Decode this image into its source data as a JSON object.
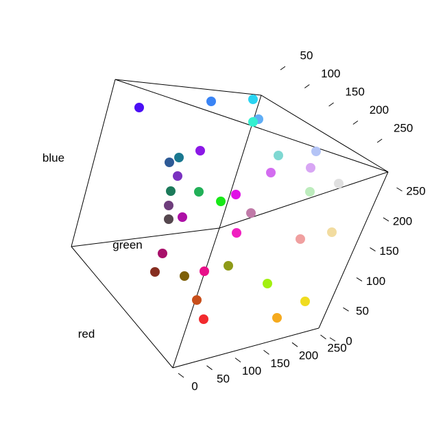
{
  "chart_data": {
    "type": "scatter",
    "title": "",
    "xlabel": "red",
    "ylabel": "green",
    "zlabel": "blue",
    "grid": false,
    "axes": {
      "red": {
        "label": "red",
        "range": [
          0,
          255
        ],
        "ticks": [
          0,
          50,
          100,
          150,
          200,
          250
        ]
      },
      "green": {
        "label": "green",
        "range": [
          0,
          255
        ],
        "ticks": [
          50,
          100,
          150,
          200,
          250
        ]
      },
      "blue": {
        "label": "blue",
        "range": [
          0,
          255
        ],
        "ticks": [
          0,
          50,
          100,
          150,
          200,
          250
        ]
      }
    },
    "points": [
      {
        "color": "#4b0ff5"
      },
      {
        "color": "#3a84f5"
      },
      {
        "color": "#2ad4f2"
      },
      {
        "color": "#60aef6"
      },
      {
        "color": "#33f0d0"
      },
      {
        "color": "#7fd8d2"
      },
      {
        "color": "#b4c4f6"
      },
      {
        "color": "#8b18e6"
      },
      {
        "color": "#1a7890"
      },
      {
        "color": "#2e5a96"
      },
      {
        "color": "#d36cf0"
      },
      {
        "color": "#d8a6f4"
      },
      {
        "color": "#e0e0e0"
      },
      {
        "color": "#7a32c0"
      },
      {
        "color": "#1c7a5a"
      },
      {
        "color": "#22b058"
      },
      {
        "color": "#bdecbd"
      },
      {
        "color": "#18e818"
      },
      {
        "color": "#e010e6"
      },
      {
        "color": "#6e3d7c"
      },
      {
        "color": "#c07aa8"
      },
      {
        "color": "#55474e"
      },
      {
        "color": "#ad10a6"
      },
      {
        "color": "#f020c0"
      },
      {
        "color": "#f0a0a0"
      },
      {
        "color": "#f2dca0"
      },
      {
        "color": "#a8106a"
      },
      {
        "color": "#862e20"
      },
      {
        "color": "#7e6008"
      },
      {
        "color": "#e8108a"
      },
      {
        "color": "#8e9a18"
      },
      {
        "color": "#a2f010"
      },
      {
        "color": "#c84e1a"
      },
      {
        "color": "#f0dc20"
      },
      {
        "color": "#f22a2e"
      },
      {
        "color": "#f5aa1e"
      }
    ]
  }
}
